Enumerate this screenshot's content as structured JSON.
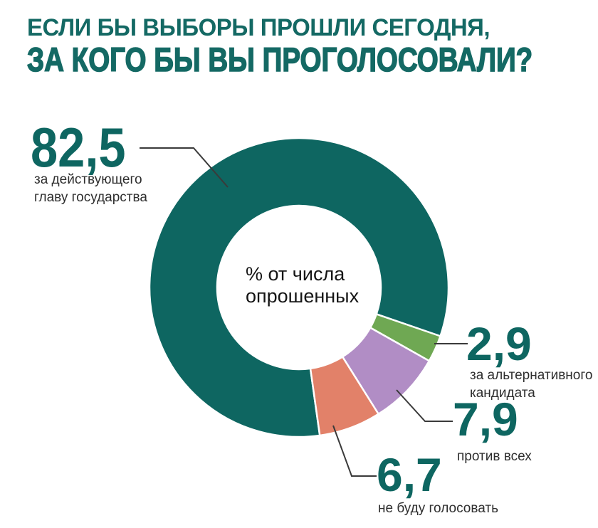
{
  "header": {
    "line1": "ЕСЛИ БЫ ВЫБОРЫ ПРОШЛИ СЕГОДНЯ,",
    "line2": "ЗА КОГО БЫ ВЫ ПРОГОЛОСОВАЛИ?",
    "color": "#146964"
  },
  "center_label": {
    "lines": [
      "% от числа",
      "опрошенных"
    ]
  },
  "callouts": [
    {
      "value_display": "82,5",
      "caption_lines": [
        "за действующего",
        "главу государства"
      ]
    },
    {
      "value_display": "2,9",
      "caption_lines": [
        "за альтернативного",
        "кандидата"
      ]
    },
    {
      "value_display": "7,9",
      "caption_lines": [
        "против всех"
      ]
    },
    {
      "value_display": "6,7",
      "caption_lines": [
        "не буду голосовать"
      ]
    }
  ],
  "colors": {
    "title": "#146964",
    "number": "#0E6661",
    "caption": "#2E2E2E",
    "leader_line": "#3A3A3A",
    "center_text": "#151515",
    "background": "#FFFFFF"
  },
  "chart_data": {
    "type": "pie",
    "donut": true,
    "title": "ЕСЛИ БЫ ВЫБОРЫ ПРОШЛИ СЕГОДНЯ, ЗА КОГО БЫ ВЫ ПРОГОЛОСОВАЛИ?",
    "center_note": "% от числа опрошенных",
    "unit": "% of respondents",
    "start_angle_deg": 172,
    "direction": "clockwise",
    "legend_position": "callouts",
    "segments": [
      {
        "label": "за действующего главу государства",
        "value": 82.5,
        "display": "82,5",
        "color": "#0E6661"
      },
      {
        "label": "за альтернативного кандидата",
        "value": 2.9,
        "display": "2,9",
        "color": "#6FA853"
      },
      {
        "label": "против всех",
        "value": 7.9,
        "display": "7,9",
        "color": "#B18DC5"
      },
      {
        "label": "не буду голосовать",
        "value": 6.7,
        "display": "6,7",
        "color": "#E28169"
      }
    ]
  }
}
